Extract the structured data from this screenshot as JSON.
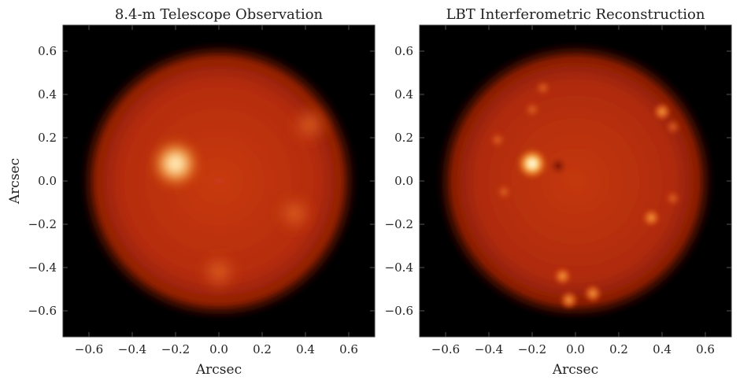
{
  "chart_data": [
    {
      "type": "heatmap",
      "title": "8.4-m Telescope Observation",
      "xlabel": "Arcsec",
      "ylabel": "Arcsec",
      "xlim": [
        -0.72,
        0.72
      ],
      "ylim": [
        -0.72,
        0.72
      ],
      "xticks": [
        "−0.6",
        "−0.4",
        "−0.2",
        "0.0",
        "0.2",
        "0.4",
        "0.6"
      ],
      "yticks": [
        "0.6",
        "0.4",
        "0.2",
        "0.0",
        "−0.2",
        "−0.4",
        "−0.6"
      ],
      "xtick_values": [
        -0.6,
        -0.4,
        -0.2,
        0.0,
        0.2,
        0.4,
        0.6
      ],
      "ytick_values": [
        0.6,
        0.4,
        0.2,
        0.0,
        -0.2,
        -0.4,
        -0.6
      ],
      "disk": {
        "cx": 0.0,
        "cy": 0.0,
        "r": 0.62
      },
      "bright_spots": [
        {
          "x": -0.2,
          "y": 0.08,
          "intensity": 1.0
        },
        {
          "x": 0.42,
          "y": 0.26,
          "intensity": 0.35
        },
        {
          "x": 0.35,
          "y": -0.15,
          "intensity": 0.3
        },
        {
          "x": 0.0,
          "y": -0.42,
          "intensity": 0.3
        }
      ],
      "colormap": "afmhot",
      "grid": false
    },
    {
      "type": "heatmap",
      "title": "LBT Interferometric Reconstruction",
      "xlabel": "Arcsec",
      "ylabel": "",
      "xlim": [
        -0.72,
        0.72
      ],
      "ylim": [
        -0.72,
        0.72
      ],
      "xticks": [
        "−0.6",
        "−0.4",
        "−0.2",
        "0.0",
        "0.2",
        "0.4",
        "0.6"
      ],
      "yticks": [
        "0.6",
        "0.4",
        "0.2",
        "0.0",
        "−0.2",
        "−0.4",
        "−0.6"
      ],
      "xtick_values": [
        -0.6,
        -0.4,
        -0.2,
        0.0,
        0.2,
        0.4,
        0.6
      ],
      "ytick_values": [
        0.6,
        0.4,
        0.2,
        0.0,
        -0.2,
        -0.4,
        -0.6
      ],
      "disk": {
        "cx": 0.0,
        "cy": 0.0,
        "r": 0.62
      },
      "bright_spots": [
        {
          "x": -0.2,
          "y": 0.08,
          "intensity": 1.0
        },
        {
          "x": 0.4,
          "y": 0.32,
          "intensity": 0.45
        },
        {
          "x": 0.45,
          "y": 0.25,
          "intensity": 0.35
        },
        {
          "x": 0.35,
          "y": -0.17,
          "intensity": 0.45
        },
        {
          "x": -0.06,
          "y": -0.44,
          "intensity": 0.45
        },
        {
          "x": -0.03,
          "y": -0.55,
          "intensity": 0.45
        },
        {
          "x": 0.08,
          "y": -0.52,
          "intensity": 0.45
        },
        {
          "x": -0.15,
          "y": 0.43,
          "intensity": 0.3
        },
        {
          "x": -0.2,
          "y": 0.33,
          "intensity": 0.25
        },
        {
          "x": -0.36,
          "y": 0.19,
          "intensity": 0.2
        },
        {
          "x": -0.33,
          "y": -0.05,
          "intensity": 0.2
        },
        {
          "x": 0.45,
          "y": -0.08,
          "intensity": 0.2
        }
      ],
      "dark_spots": [
        {
          "x": -0.08,
          "y": 0.07
        }
      ],
      "colormap": "afmhot",
      "grid": false
    }
  ]
}
